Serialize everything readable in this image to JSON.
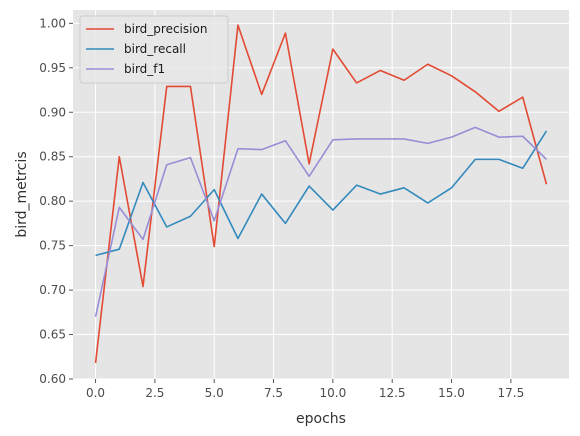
{
  "chart_data": {
    "type": "line",
    "title": "",
    "xlabel": "epochs",
    "ylabel": "bird_metrcis",
    "xlim": [
      -0.95,
      19.95
    ],
    "ylim": [
      0.6,
      1.015
    ],
    "xticks": [
      0.0,
      2.5,
      5.0,
      7.5,
      10.0,
      12.5,
      15.0,
      17.5
    ],
    "xtick_labels": [
      "0.0",
      "2.5",
      "5.0",
      "7.5",
      "10.0",
      "12.5",
      "15.0",
      "17.5"
    ],
    "yticks": [
      0.6,
      0.65,
      0.7,
      0.75,
      0.8,
      0.85,
      0.9,
      0.95,
      1.0
    ],
    "ytick_labels": [
      "0.60",
      "0.65",
      "0.70",
      "0.75",
      "0.80",
      "0.85",
      "0.90",
      "0.95",
      "1.00"
    ],
    "grid": true,
    "legend_position": "top-left",
    "x": [
      0,
      1,
      2,
      3,
      4,
      5,
      6,
      7,
      8,
      9,
      10,
      11,
      12,
      13,
      14,
      15,
      16,
      17,
      18,
      19
    ],
    "series": [
      {
        "name": "bird_precision",
        "color": "#e24a33",
        "values": [
          0.618,
          0.85,
          0.704,
          0.929,
          0.929,
          0.749,
          0.998,
          0.92,
          0.989,
          0.842,
          0.971,
          0.933,
          0.947,
          0.936,
          0.954,
          0.941,
          0.923,
          0.901,
          0.917,
          0.819
        ]
      },
      {
        "name": "bird_recall",
        "color": "#348abd",
        "values": [
          0.739,
          0.746,
          0.821,
          0.771,
          0.783,
          0.813,
          0.758,
          0.808,
          0.775,
          0.817,
          0.79,
          0.818,
          0.808,
          0.815,
          0.798,
          0.815,
          0.847,
          0.847,
          0.837,
          0.879
        ]
      },
      {
        "name": "bird_f1",
        "color": "#988ed5",
        "values": [
          0.67,
          0.793,
          0.757,
          0.841,
          0.849,
          0.778,
          0.859,
          0.858,
          0.868,
          0.828,
          0.869,
          0.87,
          0.87,
          0.87,
          0.865,
          0.872,
          0.883,
          0.872,
          0.873,
          0.847
        ]
      }
    ]
  }
}
